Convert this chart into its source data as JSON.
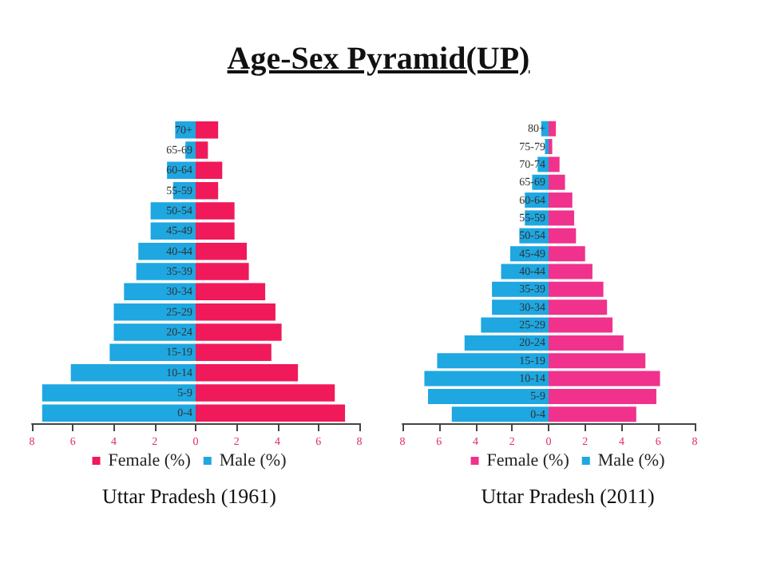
{
  "chart_data": [
    {
      "type": "bar",
      "orientation": "horizontal",
      "title": "Age-Sex Pyramid(UP)",
      "annotations": [
        "Uttar Pradesh (1961)"
      ],
      "legend": "bottom",
      "stacked": true,
      "categories": [
        "70+",
        "65-69",
        "60-64",
        "55-59",
        "50-54",
        "45-49",
        "40-44",
        "35-39",
        "30-34",
        "25-29",
        "20-24",
        "15-19",
        "10-14",
        "5-9",
        "0-4"
      ],
      "series": [
        {
          "name": "Female (%)",
          "color": "#f0195a",
          "values": [
            1.1,
            0.6,
            1.3,
            1.1,
            1.9,
            1.9,
            2.5,
            2.6,
            3.4,
            3.9,
            4.2,
            3.7,
            5.0,
            6.8,
            7.3
          ]
        },
        {
          "name": "Male (%)",
          "color": "#1ea7e1",
          "values": [
            -1.0,
            -0.5,
            -1.4,
            -1.1,
            -2.2,
            -2.2,
            -2.8,
            -2.9,
            -3.5,
            -4.0,
            -4.0,
            -4.2,
            -6.1,
            -7.5,
            -7.5
          ]
        }
      ],
      "xlim": [
        -8,
        8
      ],
      "xticks": [
        {
          "value": -8,
          "label": "8"
        },
        {
          "value": -6,
          "label": "6"
        },
        {
          "value": -4,
          "label": "4"
        },
        {
          "value": -2,
          "label": "2"
        },
        0,
        2,
        4,
        6,
        8
      ]
    },
    {
      "type": "bar",
      "orientation": "horizontal",
      "annotations": [
        "Uttar Pradesh (2011)"
      ],
      "legend": "bottom",
      "stacked": true,
      "categories": [
        "80+",
        "75-79",
        "70-74",
        "65-69",
        "60-64",
        "55-59",
        "50-54",
        "45-49",
        "40-44",
        "35-39",
        "30-34",
        "25-29",
        "20-24",
        "15-19",
        "10-14",
        "5-9",
        "0-4"
      ],
      "series": [
        {
          "name": "Female (%)",
          "color": "#f0328c",
          "values": [
            0.4,
            0.2,
            0.6,
            0.9,
            1.3,
            1.4,
            1.5,
            2.0,
            2.4,
            3.0,
            3.2,
            3.5,
            4.1,
            5.3,
            6.1,
            5.9,
            4.8
          ]
        },
        {
          "name": "Male (%)",
          "color": "#1ea7e1",
          "values": [
            -0.4,
            -0.2,
            -0.6,
            -0.9,
            -1.3,
            -1.3,
            -1.6,
            -2.1,
            -2.6,
            -3.1,
            -3.1,
            -3.7,
            -4.6,
            -6.1,
            -6.8,
            -6.6,
            -5.3
          ]
        }
      ],
      "xlim": [
        -8,
        8
      ],
      "xticks": [
        {
          "value": -8,
          "label": "8"
        },
        {
          "value": -6,
          "label": "6"
        },
        {
          "value": -4,
          "label": "4"
        },
        {
          "value": -2,
          "label": "2"
        },
        0,
        2,
        4,
        6,
        8
      ]
    }
  ]
}
